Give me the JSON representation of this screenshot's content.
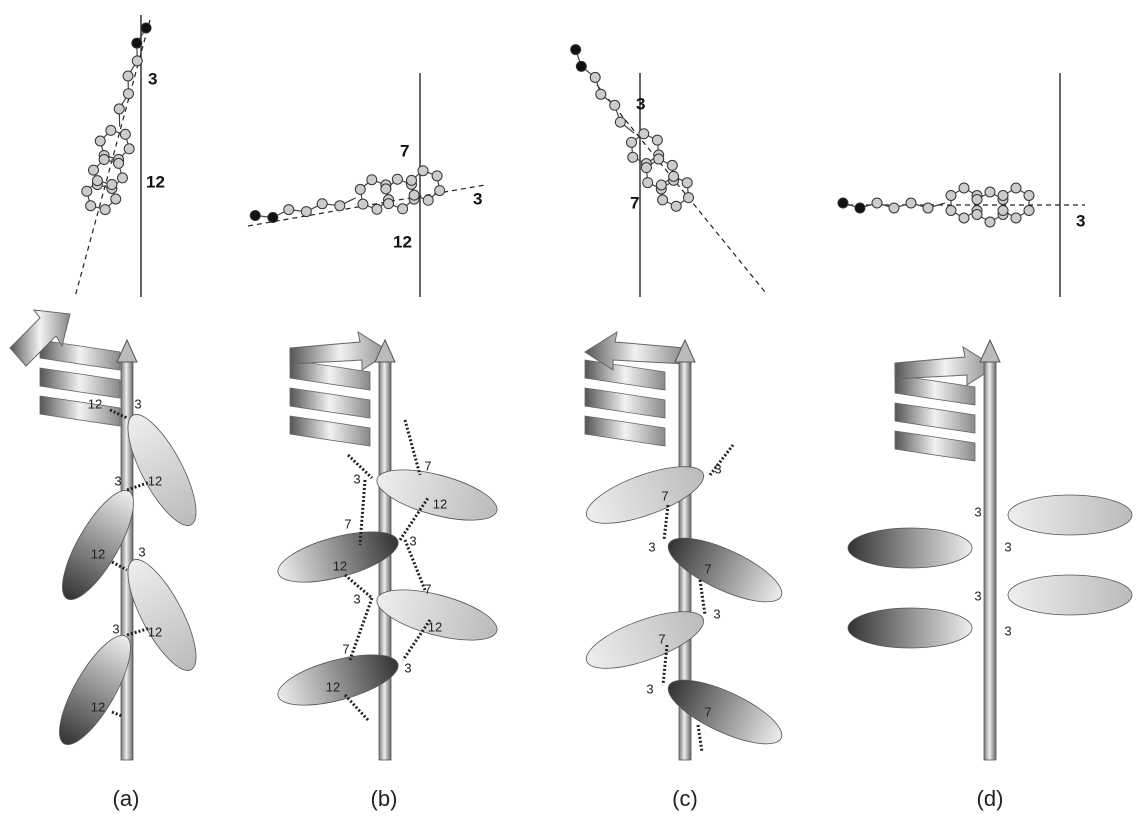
{
  "panels": [
    {
      "caption": "(a)",
      "molecule_labels": [
        "3",
        "12"
      ],
      "helix_labels": [
        "12",
        "3",
        "3",
        "12",
        "12",
        "3",
        "3",
        "12",
        "12"
      ]
    },
    {
      "caption": "(b)",
      "molecule_labels": [
        "7",
        "12",
        "3"
      ],
      "helix_labels": [
        "7",
        "3",
        "12",
        "7",
        "3",
        "12",
        "3",
        "7",
        "12",
        "7",
        "3",
        "12"
      ]
    },
    {
      "caption": "(c)",
      "molecule_labels": [
        "3",
        "7"
      ],
      "helix_labels": [
        "3",
        "7",
        "3",
        "7",
        "3",
        "7",
        "3",
        "7"
      ]
    },
    {
      "caption": "(d)",
      "molecule_labels": [
        "3"
      ],
      "helix_labels": [
        "3",
        "3",
        "3",
        "3"
      ]
    }
  ]
}
